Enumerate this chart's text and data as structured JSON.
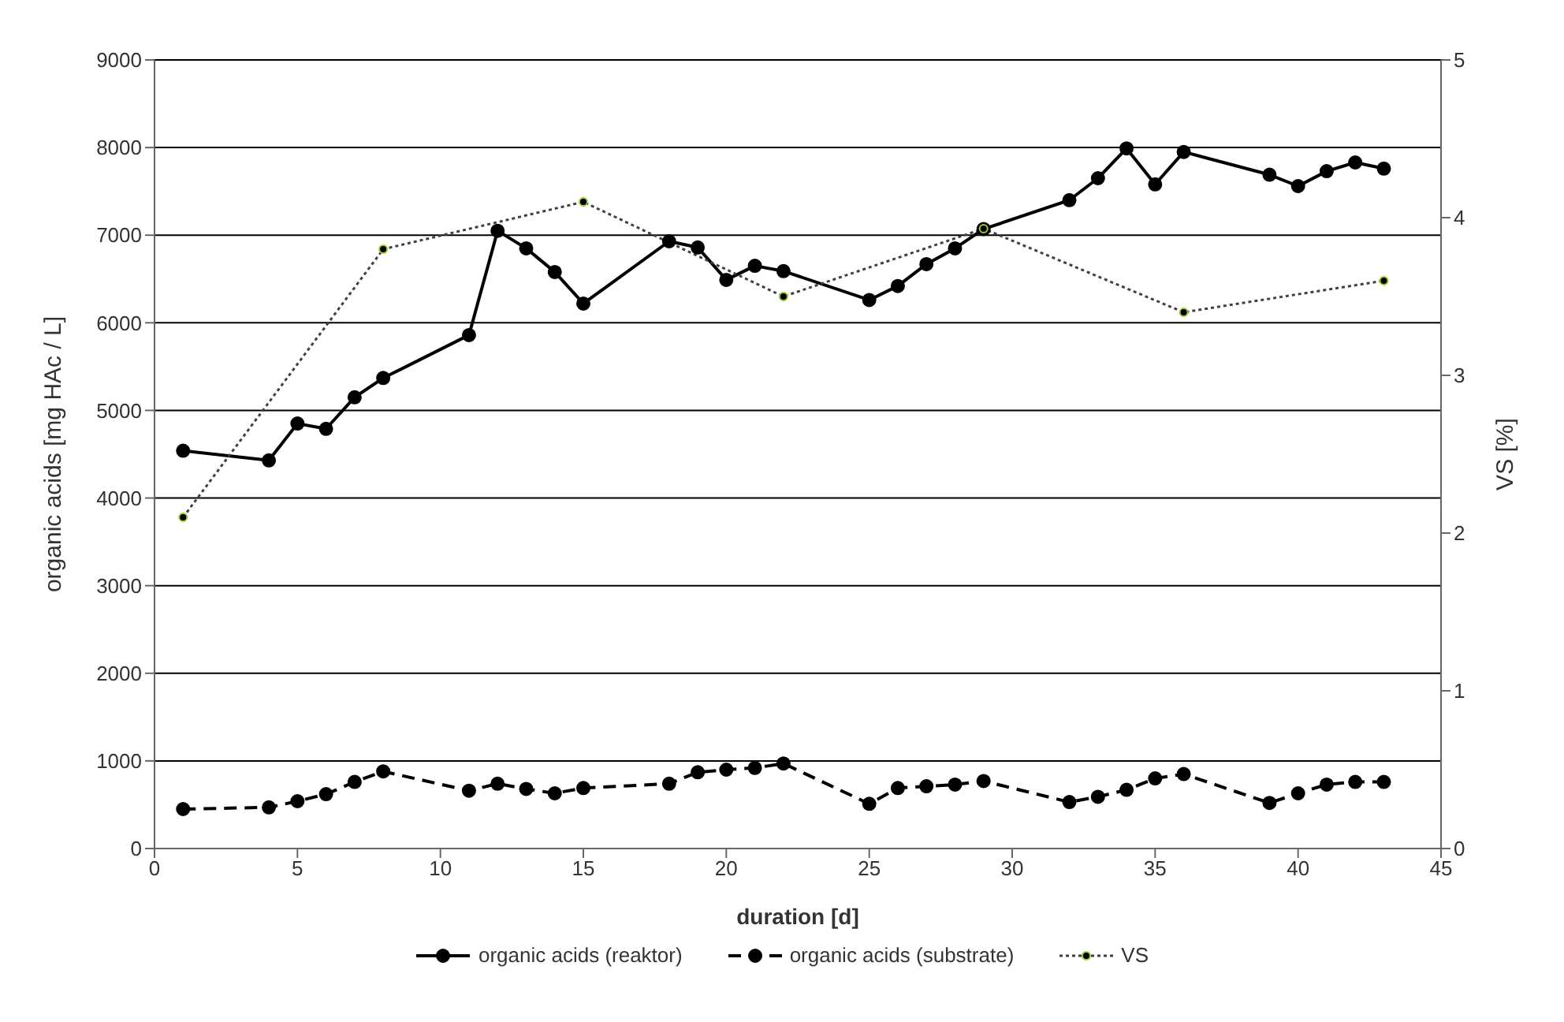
{
  "chart_data": {
    "type": "line",
    "xlabel": "duration [d]",
    "ylabel": "organic acids [mg HAc / L]",
    "y2label": "VS [%]",
    "xlim": [
      0,
      45
    ],
    "xticks": [
      0,
      5,
      10,
      15,
      20,
      25,
      30,
      35,
      40,
      45
    ],
    "ylim": [
      0,
      9000
    ],
    "yticks": [
      0,
      1000,
      2000,
      3000,
      4000,
      5000,
      6000,
      7000,
      8000,
      9000
    ],
    "y2lim": [
      0,
      5
    ],
    "y2ticks": [
      0,
      1,
      2,
      3,
      4,
      5
    ],
    "grid": "y",
    "legend": "bottom",
    "marker": "circle",
    "series": [
      {
        "name": "organic acids (reaktor)",
        "color": "#000000",
        "line_style": "solid",
        "x": [
          1,
          4,
          5,
          6,
          7,
          8,
          11,
          12,
          13,
          14,
          15,
          18,
          19,
          20,
          21,
          22,
          25,
          26,
          27,
          28,
          29,
          32,
          33,
          34,
          35,
          36,
          39,
          40,
          41,
          42,
          43
        ],
        "values": [
          4540,
          4430,
          4850,
          4790,
          5150,
          5370,
          5860,
          7050,
          6850,
          6580,
          6220,
          6930,
          6860,
          6490,
          6650,
          6590,
          6260,
          6420,
          6670,
          6850,
          7070,
          7400,
          7650,
          7990,
          7580,
          7950,
          7690,
          7560,
          7730,
          7830,
          7760
        ]
      },
      {
        "name": "organic acids (substrate)",
        "color": "#000000",
        "line_style": "dashed",
        "x": [
          1,
          4,
          5,
          6,
          7,
          8,
          11,
          12,
          13,
          14,
          15,
          18,
          19,
          20,
          21,
          22,
          25,
          26,
          27,
          28,
          29,
          32,
          33,
          34,
          35,
          36,
          39,
          40,
          41,
          42,
          43
        ],
        "values": [
          450,
          470,
          540,
          620,
          760,
          880,
          660,
          740,
          680,
          630,
          690,
          740,
          870,
          900,
          920,
          970,
          510,
          690,
          710,
          730,
          770,
          530,
          590,
          670,
          800,
          850,
          520,
          630,
          730,
          760,
          760
        ]
      },
      {
        "name": "VS",
        "color": "#404040",
        "line_style": "dotted",
        "axis": "y2",
        "x": [
          1,
          8,
          15,
          22,
          29,
          36,
          43
        ],
        "values": [
          2.1,
          3.8,
          4.1,
          3.5,
          3.93,
          3.4,
          3.6
        ]
      }
    ]
  }
}
